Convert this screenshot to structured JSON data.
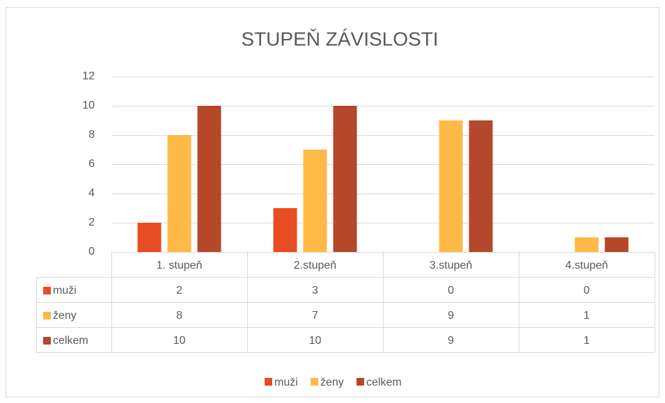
{
  "chart_data": {
    "type": "bar",
    "title": "STUPEŇ ZÁVISLOSTI",
    "categories": [
      "1. stupeň",
      "2.stupeň",
      "3.stupeň",
      "4.stupeň"
    ],
    "series": [
      {
        "name": "muži",
        "color": "#e84c22",
        "values": [
          2,
          3,
          0,
          0
        ]
      },
      {
        "name": "ženy",
        "color": "#ffb947",
        "values": [
          8,
          7,
          9,
          1
        ]
      },
      {
        "name": "celkem",
        "color": "#b5472a",
        "values": [
          10,
          10,
          9,
          1
        ]
      }
    ],
    "ylim": [
      0,
      12
    ],
    "yticks": [
      0,
      2,
      4,
      6,
      8,
      10,
      12
    ],
    "grid": true,
    "legend": "bottom",
    "data_table": true
  }
}
